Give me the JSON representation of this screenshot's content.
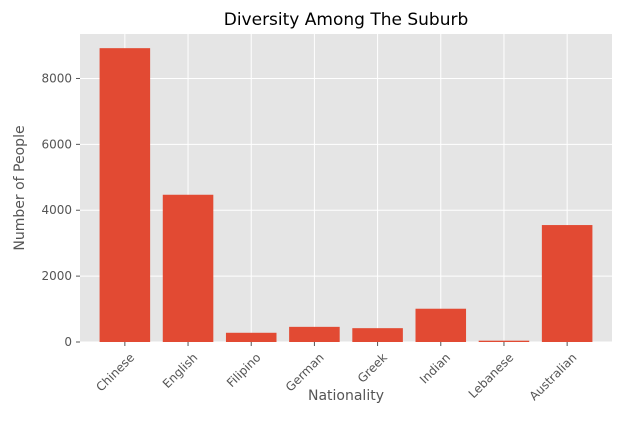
{
  "chart_data": {
    "type": "bar",
    "title": "Diversity Among The Suburb",
    "xlabel": "Nationality",
    "ylabel": "Number of People",
    "categories": [
      "Chinese",
      "English",
      "Filipino",
      "German",
      "Greek",
      "Indian",
      "Lebanese",
      "Australian"
    ],
    "values": [
      8920,
      4470,
      280,
      460,
      420,
      1010,
      40,
      3550
    ],
    "ylim": [
      0,
      9350
    ],
    "yticks": [
      0,
      2000,
      4000,
      6000,
      8000
    ],
    "grid": true,
    "legend": "none",
    "colors": {
      "bar": "#E24A33",
      "plot_background": "#E5E5E5",
      "grid": "#FFFFFF",
      "tick_text": "#555555",
      "title_text": "#000000"
    }
  }
}
